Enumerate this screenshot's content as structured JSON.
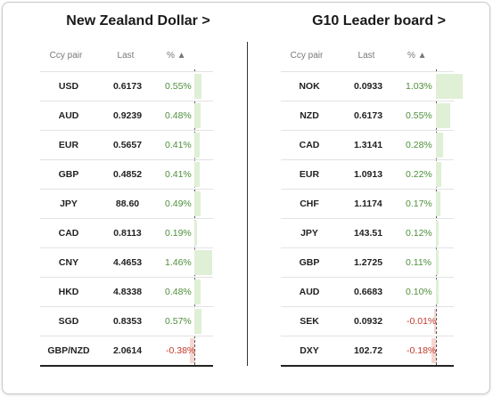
{
  "left_panel": {
    "title": "New Zealand Dollar >",
    "headers": {
      "pair": "Ccy pair",
      "last": "Last",
      "pct": "% ▲"
    },
    "rows": [
      {
        "pair": "USD",
        "last": "0.6173",
        "pct": "0.55%",
        "value": 0.55
      },
      {
        "pair": "AUD",
        "last": "0.9239",
        "pct": "0.48%",
        "value": 0.48
      },
      {
        "pair": "EUR",
        "last": "0.5657",
        "pct": "0.41%",
        "value": 0.41
      },
      {
        "pair": "GBP",
        "last": "0.4852",
        "pct": "0.41%",
        "value": 0.41
      },
      {
        "pair": "JPY",
        "last": "88.60",
        "pct": "0.49%",
        "value": 0.49
      },
      {
        "pair": "CAD",
        "last": "0.8113",
        "pct": "0.19%",
        "value": 0.19
      },
      {
        "pair": "CNY",
        "last": "4.4653",
        "pct": "1.46%",
        "value": 1.46
      },
      {
        "pair": "HKD",
        "last": "4.8338",
        "pct": "0.48%",
        "value": 0.48
      },
      {
        "pair": "SGD",
        "last": "0.8353",
        "pct": "0.57%",
        "value": 0.57
      },
      {
        "pair": "GBP/NZD",
        "last": "2.0614",
        "pct": "-0.38%",
        "value": -0.38
      }
    ]
  },
  "right_panel": {
    "title": "G10 Leader board >",
    "headers": {
      "pair": "Ccy pair",
      "last": "Last",
      "pct": "% ▲"
    },
    "rows": [
      {
        "pair": "NOK",
        "last": "0.0933",
        "pct": "1.03%",
        "value": 1.03
      },
      {
        "pair": "NZD",
        "last": "0.6173",
        "pct": "0.55%",
        "value": 0.55
      },
      {
        "pair": "CAD",
        "last": "1.3141",
        "pct": "0.28%",
        "value": 0.28
      },
      {
        "pair": "EUR",
        "last": "1.0913",
        "pct": "0.22%",
        "value": 0.22
      },
      {
        "pair": "CHF",
        "last": "1.1174",
        "pct": "0.17%",
        "value": 0.17
      },
      {
        "pair": "JPY",
        "last": "143.51",
        "pct": "0.12%",
        "value": 0.12
      },
      {
        "pair": "GBP",
        "last": "1.2725",
        "pct": "0.11%",
        "value": 0.11
      },
      {
        "pair": "AUD",
        "last": "0.6683",
        "pct": "0.10%",
        "value": 0.1
      },
      {
        "pair": "SEK",
        "last": "0.0932",
        "pct": "-0.01%",
        "value": -0.01
      },
      {
        "pair": "DXY",
        "last": "102.72",
        "pct": "-0.18%",
        "value": -0.18
      }
    ]
  },
  "colors": {
    "positive": "#4e8f3a",
    "negative": "#c0392b",
    "positive_bar": "#dff0d6",
    "negative_bar": "#f7d6d1"
  }
}
